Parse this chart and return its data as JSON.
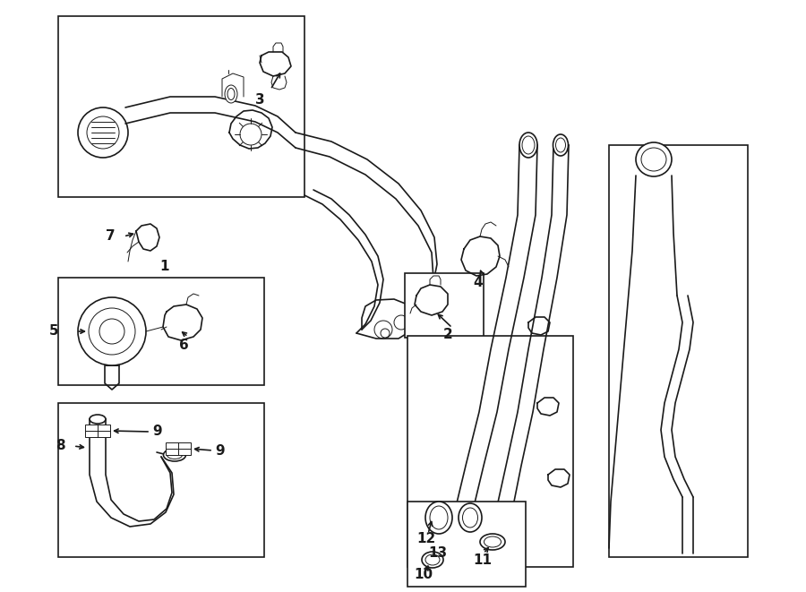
{
  "bg_color": "#ffffff",
  "line_color": "#1a1a1a",
  "fig_width": 9.0,
  "fig_height": 6.61,
  "dpi": 100,
  "lw": 1.2,
  "tlw": 0.7
}
